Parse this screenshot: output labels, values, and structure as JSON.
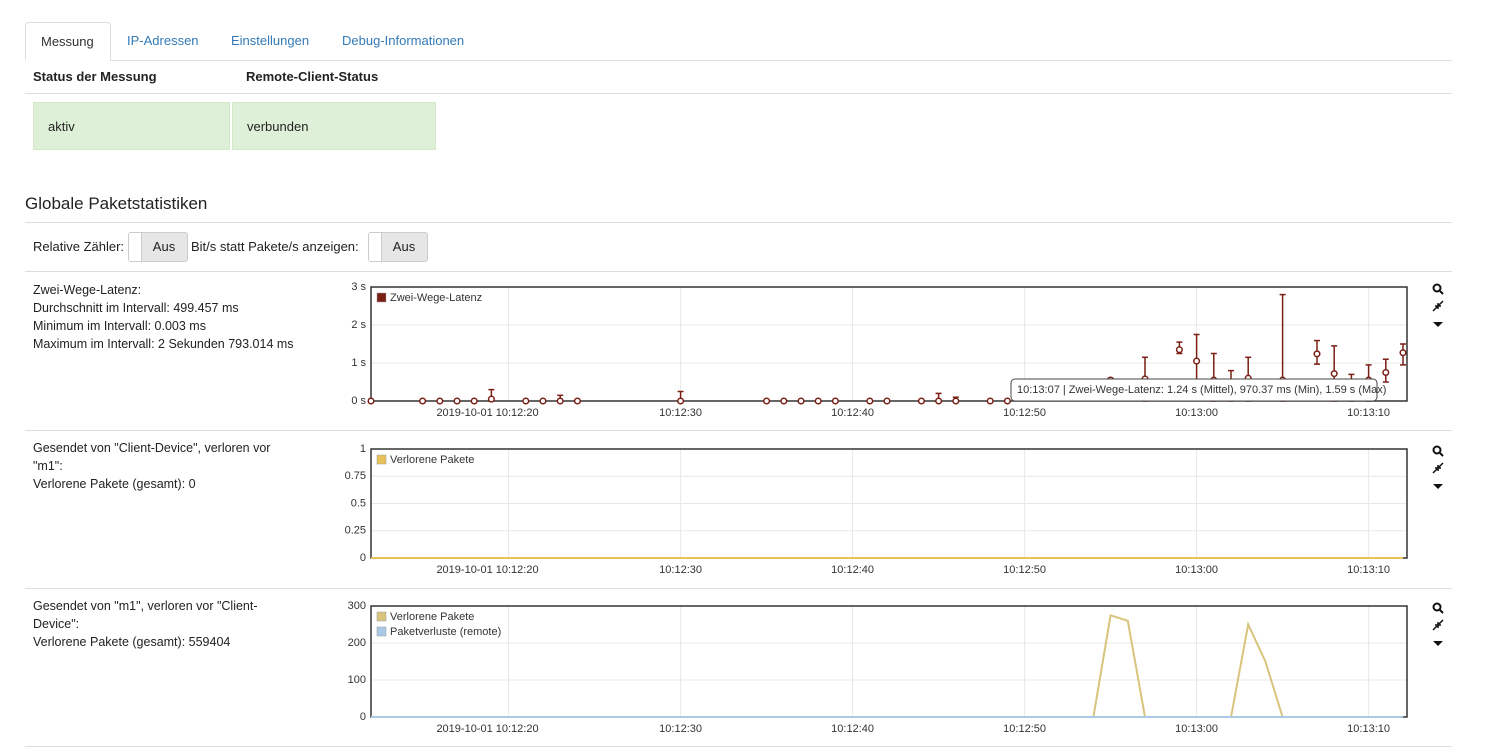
{
  "tabs": [
    "Messung",
    "IP-Adressen",
    "Einstellungen",
    "Debug-Informationen"
  ],
  "status": {
    "headers": [
      "Status der Messung",
      "Remote-Client-Status"
    ],
    "values": [
      "aktiv",
      "verbunden"
    ]
  },
  "section_title": "Globale Paketstatistiken",
  "toggles": [
    {
      "label": "Relative Zähler:",
      "state": "Aus"
    },
    {
      "label": "Bit/s statt Pakete/s anzeigen:",
      "state": "Aus"
    }
  ],
  "panels": [
    {
      "info": [
        "Zwei-Wege-Latenz:",
        "Durchschnitt im Intervall: 499.457 ms",
        "Minimum im Intervall: 0.003 ms",
        "Maximum im Intervall: 2 Sekunden 793.014 ms"
      ]
    },
    {
      "info": [
        "Gesendet von \"Client-Device\", verloren vor \"m1\":",
        "Verlorene Pakete (gesamt): 0"
      ]
    },
    {
      "info": [
        "Gesendet von \"m1\", verloren vor \"Client-Device\":",
        "Verlorene Pakete (gesamt): 559404"
      ]
    }
  ],
  "chart_data": [
    {
      "type": "errorbar",
      "grid": true,
      "legend": "upper left",
      "x": [
        "10:12:12",
        "10:12:15",
        "10:12:16",
        "10:12:17",
        "10:12:18",
        "10:12:19",
        "10:12:21",
        "10:12:22",
        "10:12:23",
        "10:12:24",
        "10:12:30",
        "10:12:35",
        "10:12:36",
        "10:12:37",
        "10:12:38",
        "10:12:39",
        "10:12:41",
        "10:12:42",
        "10:12:44",
        "10:12:45",
        "10:12:46",
        "10:12:48",
        "10:12:49",
        "10:12:55",
        "10:12:57",
        "10:12:59",
        "10:13:00",
        "10:13:01",
        "10:13:02",
        "10:13:03",
        "10:13:05",
        "10:13:07",
        "10:13:08",
        "10:13:09",
        "10:13:10",
        "10:13:11",
        "10:13:12"
      ],
      "series": [
        {
          "name": "Zwei-Wege-Latenz",
          "color": "#7a1f14",
          "values": [
            0,
            0,
            0,
            0,
            0,
            0.05,
            0,
            0,
            0,
            0,
            0,
            0,
            0,
            0,
            0,
            0,
            0,
            0,
            0,
            0,
            0,
            0,
            0,
            0.55,
            0.58,
            1.35,
            1.05,
            0.55,
            0.5,
            0.6,
            0.55,
            1.24,
            0.72,
            0.5,
            0.55,
            0.75,
            1.27
          ],
          "min": [
            0,
            0,
            0,
            0,
            0,
            0,
            0,
            0,
            0,
            0,
            0,
            0,
            0,
            0,
            0,
            0,
            0,
            0,
            0,
            0,
            0,
            0,
            0,
            0.5,
            0,
            1.25,
            0.5,
            0,
            0,
            0,
            0,
            0.97037,
            0,
            0,
            0,
            0.5,
            0.95
          ],
          "max": [
            0,
            0,
            0,
            0,
            0,
            0.3,
            0,
            0,
            0.15,
            0,
            0.25,
            0,
            0,
            0,
            0,
            0,
            0,
            0,
            0,
            0.2,
            0.1,
            0,
            0,
            0.6,
            1.15,
            1.55,
            1.75,
            1.25,
            0.8,
            1.15,
            2.8,
            1.59,
            1.45,
            0.7,
            0.95,
            1.1,
            1.5
          ]
        }
      ],
      "xlim": [
        "10:12:12",
        "10:13:12"
      ],
      "xticks": [
        {
          "value": "10:12:20",
          "label": "2019-10-01 10:12:20"
        },
        "10:12:30",
        "10:12:40",
        "10:12:50",
        "10:13:00",
        "10:13:10"
      ],
      "ylim": [
        0,
        3
      ],
      "yticks": [
        {
          "value": 0,
          "label": "0 s"
        },
        {
          "value": 1,
          "label": "1 s"
        },
        {
          "value": 2,
          "label": "2 s"
        },
        {
          "value": 3,
          "label": "3 s"
        }
      ],
      "tooltip": "10:13:07 | Zwei-Wege-Latenz: 1.24 s (Mittel), 970.37 ms (Min), 1.59 s (Max)"
    },
    {
      "type": "line",
      "grid": true,
      "legend": "upper left",
      "x": [
        "10:12:12",
        "10:13:12"
      ],
      "series": [
        {
          "name": "Verlorene Pakete",
          "color": "#e8c15a",
          "values": [
            0,
            0
          ]
        }
      ],
      "xlim": [
        "10:12:12",
        "10:13:12"
      ],
      "xticks": [
        {
          "value": "10:12:20",
          "label": "2019-10-01 10:12:20"
        },
        "10:12:30",
        "10:12:40",
        "10:12:50",
        "10:13:00",
        "10:13:10"
      ],
      "ylim": [
        0,
        1
      ],
      "yticks": [
        0,
        0.25,
        0.5,
        0.75,
        1
      ]
    },
    {
      "type": "line",
      "grid": true,
      "legend": "upper left",
      "x": [
        "10:12:12",
        "10:12:54",
        "10:12:55",
        "10:12:56",
        "10:12:57",
        "10:13:02",
        "10:13:03",
        "10:13:04",
        "10:13:05",
        "10:13:12"
      ],
      "series": [
        {
          "name": "Verlorene Pakete",
          "color": "#d9c47e",
          "values": [
            0,
            0,
            275,
            260,
            0,
            0,
            250,
            150,
            0,
            0
          ]
        },
        {
          "name": "Paketverluste (remote)",
          "color": "#a9c9e6",
          "values": [
            0,
            0,
            0,
            0,
            0,
            0,
            0,
            0,
            0,
            0
          ]
        }
      ],
      "xlim": [
        "10:12:12",
        "10:13:12"
      ],
      "xticks": [
        {
          "value": "10:12:20",
          "label": "2019-10-01 10:12:20"
        },
        "10:12:30",
        "10:12:40",
        "10:12:50",
        "10:13:00",
        "10:13:10"
      ],
      "ylim": [
        0,
        300
      ],
      "yticks": [
        0,
        100,
        200,
        300
      ]
    }
  ]
}
